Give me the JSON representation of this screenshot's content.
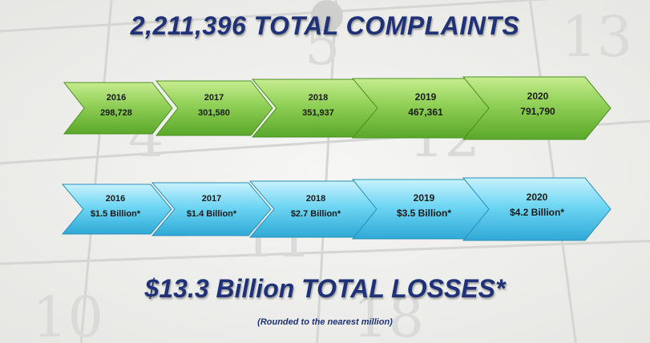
{
  "header": {
    "title": "2,211,396 TOTAL COMPLAINTS"
  },
  "complaints": [
    {
      "year": "2016",
      "value": "298,728"
    },
    {
      "year": "2017",
      "value": "301,580"
    },
    {
      "year": "2018",
      "value": "351,937"
    },
    {
      "year": "2019",
      "value": "467,361"
    },
    {
      "year": "2020",
      "value": "791,790"
    }
  ],
  "losses": [
    {
      "year": "2016",
      "value": "$1.5 Billion*"
    },
    {
      "year": "2017",
      "value": "$1.4 Billion*"
    },
    {
      "year": "2018",
      "value": "$2.7 Billion*"
    },
    {
      "year": "2019",
      "value": "$3.5 Billion*"
    },
    {
      "year": "2020",
      "value": "$4.2 Billion*"
    }
  ],
  "footer": {
    "title": "$13.3 Billion TOTAL LOSSES*",
    "note": "(Rounded to the nearest million)"
  },
  "colors": {
    "complaints_fill": "#8fcf55",
    "losses_fill": "#6fd6f4",
    "title": "#1f3278"
  }
}
